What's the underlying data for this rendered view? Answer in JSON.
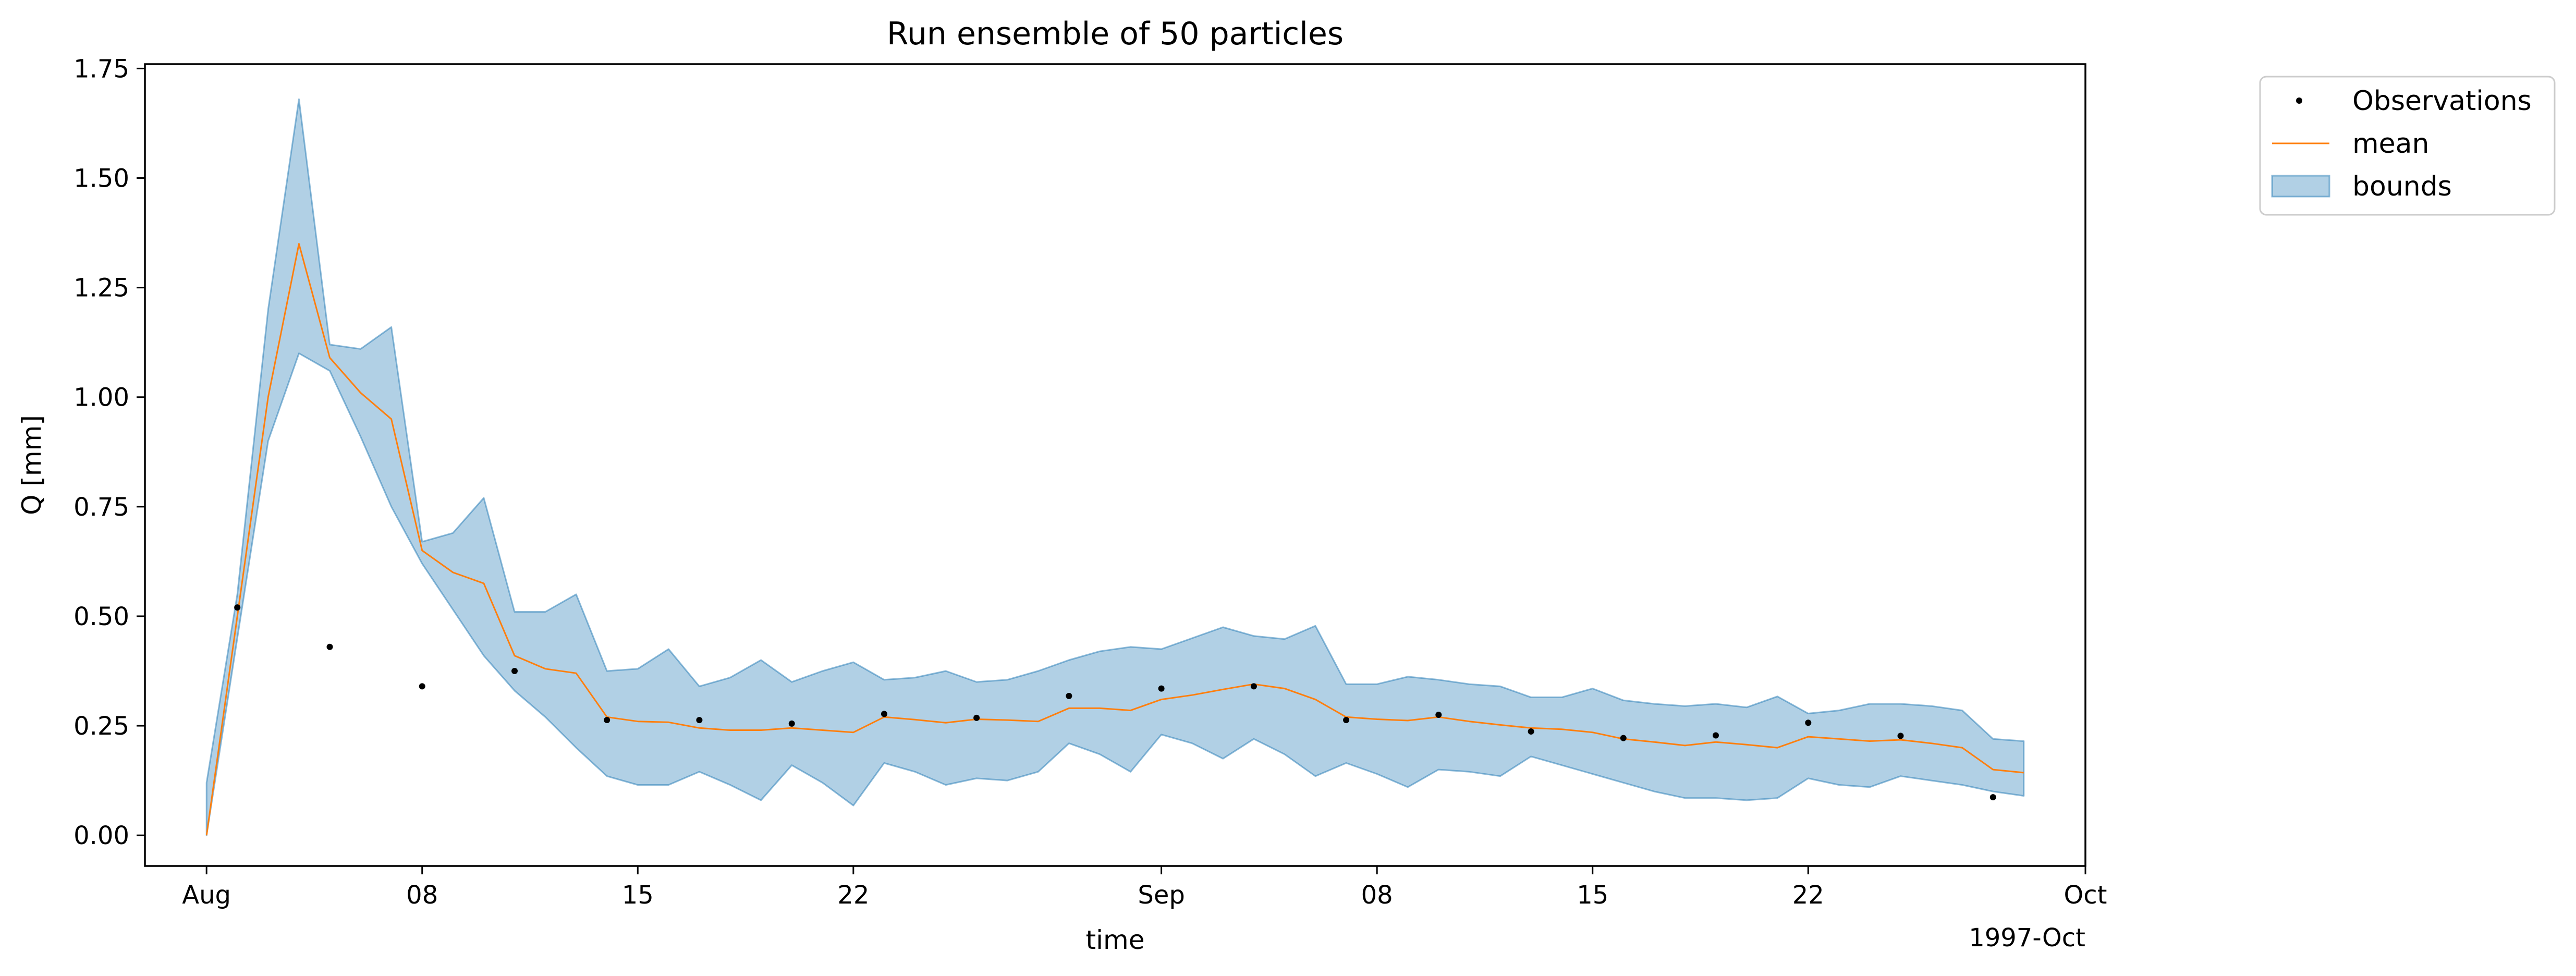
{
  "chart_data": {
    "type": "line",
    "title": "Run ensemble of 50 particles",
    "xlabel": "time",
    "ylabel": "Q [mm]",
    "x_offset_label": "1997-Oct",
    "xlim": [
      "1997-07-30",
      "1997-10-01"
    ],
    "ylim": [
      -0.07,
      1.76
    ],
    "yticks": [
      0.0,
      0.25,
      0.5,
      0.75,
      1.0,
      1.25,
      1.5,
      1.75
    ],
    "ytick_labels": [
      "0.00",
      "0.25",
      "0.50",
      "0.75",
      "1.00",
      "1.25",
      "1.50",
      "1.75"
    ],
    "xticks": [
      {
        "date": "1997-08-01",
        "label": "Aug"
      },
      {
        "date": "1997-08-08",
        "label": "08"
      },
      {
        "date": "1997-08-15",
        "label": "15"
      },
      {
        "date": "1997-08-22",
        "label": "22"
      },
      {
        "date": "1997-09-01",
        "label": "Sep"
      },
      {
        "date": "1997-09-08",
        "label": "08"
      },
      {
        "date": "1997-09-15",
        "label": "15"
      },
      {
        "date": "1997-09-22",
        "label": "22"
      },
      {
        "date": "1997-10-01",
        "label": "Oct"
      }
    ],
    "legend": {
      "placement": "outside-top-right",
      "entries": [
        {
          "label": "Observations",
          "kind": "marker",
          "color": "#000000"
        },
        {
          "label": "mean",
          "kind": "line",
          "color": "#ff7f0e"
        },
        {
          "label": "bounds",
          "kind": "patch",
          "color": "#1f77b4"
        }
      ]
    },
    "series": [
      {
        "name": "Observations",
        "kind": "scatter",
        "color": "#000000",
        "points": [
          [
            "1997-08-02",
            0.52
          ],
          [
            "1997-08-05",
            0.43
          ],
          [
            "1997-08-08",
            0.34
          ],
          [
            "1997-08-11",
            0.375
          ],
          [
            "1997-08-14",
            0.263
          ],
          [
            "1997-08-17",
            0.263
          ],
          [
            "1997-08-20",
            0.255
          ],
          [
            "1997-08-23",
            0.277
          ],
          [
            "1997-08-26",
            0.268
          ],
          [
            "1997-08-29",
            0.318
          ],
          [
            "1997-09-01",
            0.335
          ],
          [
            "1997-09-04",
            0.34
          ],
          [
            "1997-09-07",
            0.263
          ],
          [
            "1997-09-10",
            0.275
          ],
          [
            "1997-09-13",
            0.237
          ],
          [
            "1997-09-16",
            0.222
          ],
          [
            "1997-09-19",
            0.228
          ],
          [
            "1997-09-22",
            0.257
          ],
          [
            "1997-09-25",
            0.227
          ],
          [
            "1997-09-28",
            0.087
          ]
        ]
      },
      {
        "name": "mean",
        "kind": "line",
        "color": "#ff7f0e",
        "x": [
          "1997-08-01",
          "1997-08-02",
          "1997-08-03",
          "1997-08-04",
          "1997-08-05",
          "1997-08-06",
          "1997-08-07",
          "1997-08-08",
          "1997-08-09",
          "1997-08-10",
          "1997-08-11",
          "1997-08-12",
          "1997-08-13",
          "1997-08-14",
          "1997-08-15",
          "1997-08-16",
          "1997-08-17",
          "1997-08-18",
          "1997-08-19",
          "1997-08-20",
          "1997-08-21",
          "1997-08-22",
          "1997-08-23",
          "1997-08-24",
          "1997-08-25",
          "1997-08-26",
          "1997-08-27",
          "1997-08-28",
          "1997-08-29",
          "1997-08-30",
          "1997-08-31",
          "1997-09-01",
          "1997-09-02",
          "1997-09-03",
          "1997-09-04",
          "1997-09-05",
          "1997-09-06",
          "1997-09-07",
          "1997-09-08",
          "1997-09-09",
          "1997-09-10",
          "1997-09-11",
          "1997-09-12",
          "1997-09-13",
          "1997-09-14",
          "1997-09-15",
          "1997-09-16",
          "1997-09-17",
          "1997-09-18",
          "1997-09-19",
          "1997-09-20",
          "1997-09-21",
          "1997-09-22",
          "1997-09-23",
          "1997-09-24",
          "1997-09-25",
          "1997-09-26",
          "1997-09-27",
          "1997-09-28",
          "1997-09-29"
        ],
        "values": [
          0.0,
          0.5,
          1.0,
          1.35,
          1.09,
          1.01,
          0.95,
          0.65,
          0.6,
          0.575,
          0.41,
          0.38,
          0.37,
          0.27,
          0.26,
          0.258,
          0.245,
          0.24,
          0.24,
          0.245,
          0.24,
          0.235,
          0.27,
          0.264,
          0.257,
          0.265,
          0.263,
          0.26,
          0.29,
          0.29,
          0.285,
          0.31,
          0.32,
          0.333,
          0.345,
          0.335,
          0.31,
          0.27,
          0.265,
          0.262,
          0.27,
          0.26,
          0.252,
          0.245,
          0.242,
          0.235,
          0.22,
          0.213,
          0.205,
          0.213,
          0.207,
          0.2,
          0.225,
          0.22,
          0.215,
          0.218,
          0.21,
          0.2,
          0.15,
          0.143
        ]
      },
      {
        "name": "bounds",
        "kind": "band",
        "color": "#1f77b4",
        "x": [
          "1997-08-01",
          "1997-08-02",
          "1997-08-03",
          "1997-08-04",
          "1997-08-05",
          "1997-08-06",
          "1997-08-07",
          "1997-08-08",
          "1997-08-09",
          "1997-08-10",
          "1997-08-11",
          "1997-08-12",
          "1997-08-13",
          "1997-08-14",
          "1997-08-15",
          "1997-08-16",
          "1997-08-17",
          "1997-08-18",
          "1997-08-19",
          "1997-08-20",
          "1997-08-21",
          "1997-08-22",
          "1997-08-23",
          "1997-08-24",
          "1997-08-25",
          "1997-08-26",
          "1997-08-27",
          "1997-08-28",
          "1997-08-29",
          "1997-08-30",
          "1997-08-31",
          "1997-09-01",
          "1997-09-02",
          "1997-09-03",
          "1997-09-04",
          "1997-09-05",
          "1997-09-06",
          "1997-09-07",
          "1997-09-08",
          "1997-09-09",
          "1997-09-10",
          "1997-09-11",
          "1997-09-12",
          "1997-09-13",
          "1997-09-14",
          "1997-09-15",
          "1997-09-16",
          "1997-09-17",
          "1997-09-18",
          "1997-09-19",
          "1997-09-20",
          "1997-09-21",
          "1997-09-22",
          "1997-09-23",
          "1997-09-24",
          "1997-09-25",
          "1997-09-26",
          "1997-09-27",
          "1997-09-28",
          "1997-09-29"
        ],
        "upper": [
          0.12,
          0.55,
          1.2,
          1.68,
          1.12,
          1.11,
          1.16,
          0.67,
          0.69,
          0.77,
          0.51,
          0.51,
          0.55,
          0.375,
          0.38,
          0.425,
          0.34,
          0.36,
          0.4,
          0.35,
          0.375,
          0.395,
          0.355,
          0.36,
          0.375,
          0.35,
          0.355,
          0.375,
          0.4,
          0.42,
          0.43,
          0.425,
          0.45,
          0.475,
          0.455,
          0.448,
          0.478,
          0.345,
          0.345,
          0.362,
          0.355,
          0.345,
          0.34,
          0.315,
          0.315,
          0.335,
          0.308,
          0.3,
          0.295,
          0.3,
          0.292,
          0.317,
          0.278,
          0.285,
          0.3,
          0.3,
          0.295,
          0.285,
          0.22,
          0.215
        ],
        "lower": [
          0.0,
          0.45,
          0.9,
          1.1,
          1.06,
          0.91,
          0.75,
          0.62,
          0.515,
          0.41,
          0.33,
          0.27,
          0.2,
          0.135,
          0.115,
          0.115,
          0.145,
          0.115,
          0.08,
          0.16,
          0.12,
          0.068,
          0.165,
          0.145,
          0.115,
          0.13,
          0.125,
          0.145,
          0.21,
          0.185,
          0.145,
          0.23,
          0.21,
          0.175,
          0.22,
          0.185,
          0.135,
          0.165,
          0.14,
          0.11,
          0.15,
          0.145,
          0.135,
          0.18,
          0.16,
          0.14,
          0.12,
          0.1,
          0.085,
          0.085,
          0.08,
          0.085,
          0.13,
          0.115,
          0.11,
          0.135,
          0.125,
          0.115,
          0.1,
          0.09
        ]
      }
    ]
  }
}
